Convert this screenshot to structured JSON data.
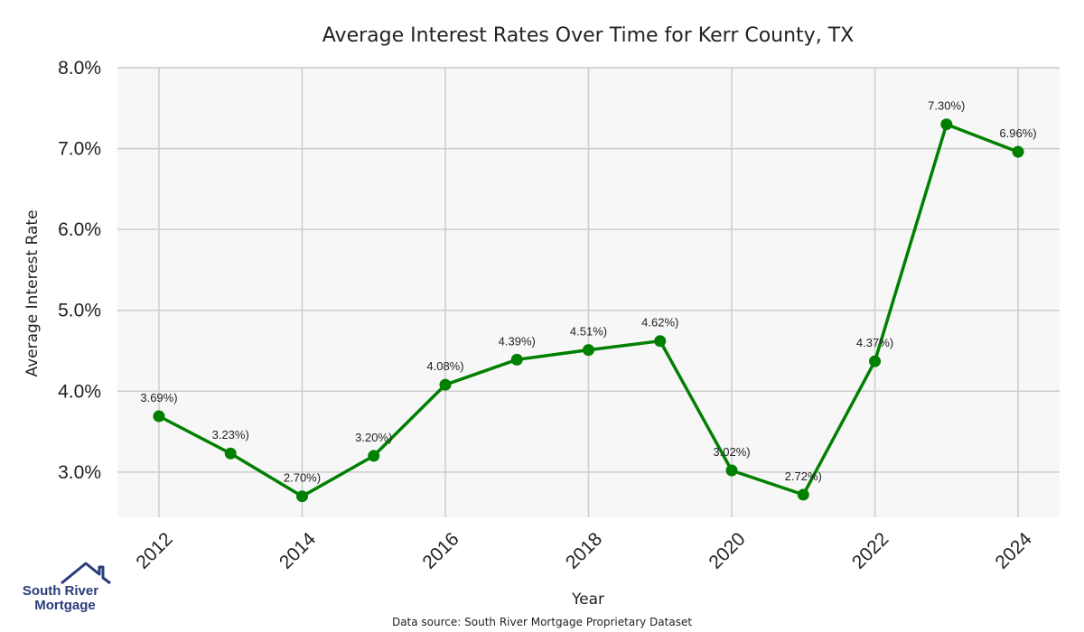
{
  "chart_data": {
    "type": "line",
    "title": "Average Interest Rates Over Time for Kerr County, TX",
    "xlabel": "Year",
    "ylabel": "Average Interest Rate",
    "x": [
      2012,
      2013,
      2014,
      2015,
      2016,
      2017,
      2018,
      2019,
      2020,
      2021,
      2022,
      2023,
      2024
    ],
    "values": [
      3.69,
      3.23,
      2.7,
      3.2,
      4.08,
      4.39,
      4.51,
      4.62,
      3.02,
      2.72,
      4.37,
      7.3,
      6.96
    ],
    "data_labels": [
      "3.69%)",
      "3.23%)",
      "2.70%)",
      "3.20%)",
      "4.08%)",
      "4.39%)",
      "4.51%)",
      "4.62%)",
      "3.02%)",
      "2.72%)",
      "4.37%)",
      "7.30%)",
      "6.96%)"
    ],
    "x_ticks": [
      "2012",
      "2014",
      "2016",
      "2018",
      "2020",
      "2022",
      "2024"
    ],
    "x_tick_values": [
      2012,
      2014,
      2016,
      2018,
      2020,
      2022,
      2024
    ],
    "y_ticks": [
      "3.0%",
      "4.0%",
      "5.0%",
      "6.0%",
      "7.0%",
      "8.0%"
    ],
    "y_tick_values": [
      3,
      4,
      5,
      6,
      7,
      8
    ],
    "xlim": [
      2011.42,
      2024.58
    ],
    "ylim": [
      2.44,
      8.0
    ],
    "grid": true,
    "colors": {
      "line": "#008000",
      "plot_background": "#f7f7f7",
      "grid": "#cccccc"
    }
  },
  "footer": {
    "source": "Data source: South River Mortgage Proprietary Dataset"
  },
  "logo": {
    "line1": "South River",
    "line2": "Mortgage",
    "color": "#2a3c7a"
  }
}
